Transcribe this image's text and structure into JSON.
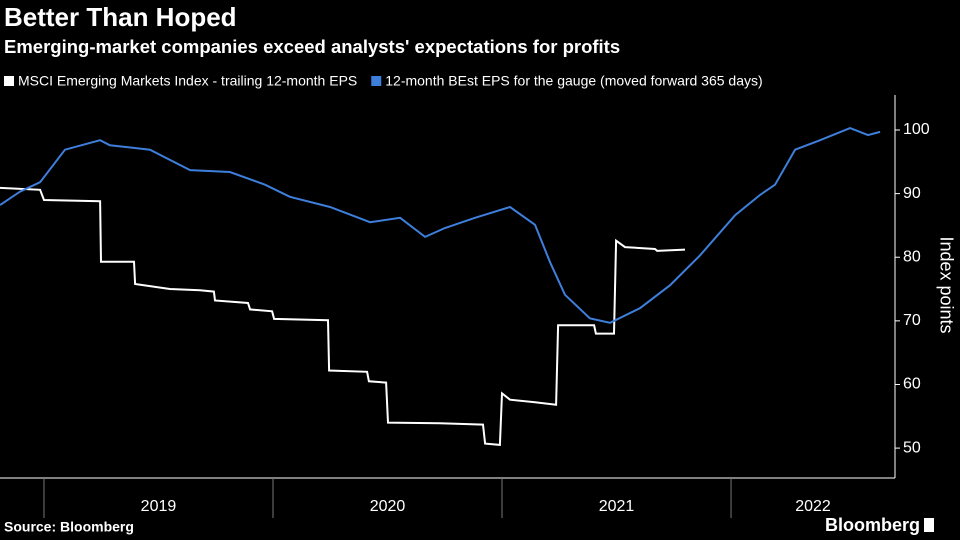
{
  "chart_data": {
    "type": "line",
    "title": "Better Than Hoped",
    "subtitle": "Emerging-market companies exceed analysts' expectations for profits",
    "y_axis_label": "Index points",
    "source": "Source: Bloomberg",
    "logo": "Bloomberg",
    "xlim": [
      2018.808,
      2022.716
    ],
    "xticks": [
      2019,
      2020,
      2021,
      2022
    ],
    "ylim": [
      45.3,
      105.5
    ],
    "yticks": [
      50,
      60,
      70,
      80,
      90,
      100
    ],
    "series": [
      {
        "name": "MSCI Emerging Markets Index - trailing 12-month EPS",
        "color": "#ffffff",
        "x": [
          2018.808,
          2018.983,
          2019.0,
          2019.245,
          2019.249,
          2019.393,
          2019.398,
          2019.55,
          2019.681,
          2019.742,
          2019.747,
          2019.891,
          2019.9,
          2019.996,
          2020.005,
          2020.24,
          2020.245,
          2020.411,
          2020.419,
          2020.494,
          2020.502,
          2020.729,
          2020.917,
          2020.926,
          2020.991,
          2021.0,
          2021.035,
          2021.144,
          2021.236,
          2021.245,
          2021.402,
          2021.41,
          2021.489,
          2021.498,
          2021.537,
          2021.668,
          2021.677,
          2021.799
        ],
        "values": [
          90.9,
          90.6,
          89.0,
          88.8,
          79.3,
          79.3,
          75.8,
          75.0,
          74.8,
          74.6,
          73.2,
          72.8,
          71.8,
          71.5,
          70.3,
          70.1,
          62.2,
          62.0,
          60.5,
          60.3,
          54.0,
          53.9,
          53.7,
          50.7,
          50.5,
          58.6,
          57.6,
          57.2,
          56.8,
          69.3,
          69.3,
          68.0,
          68.0,
          82.6,
          81.6,
          81.3,
          81.0,
          81.2
        ]
      },
      {
        "name": "12-month BEst EPS for the gauge (moved forward 365 days)",
        "color": "#3f7fdc",
        "x": [
          2018.808,
          2018.895,
          2018.983,
          2019.092,
          2019.245,
          2019.288,
          2019.463,
          2019.638,
          2019.812,
          2019.965,
          2020.074,
          2020.249,
          2020.424,
          2020.555,
          2020.664,
          2020.751,
          2020.882,
          2021.035,
          2021.144,
          2021.21,
          2021.275,
          2021.384,
          2021.472,
          2021.603,
          2021.734,
          2021.865,
          2022.018,
          2022.127,
          2022.192,
          2022.28,
          2022.389,
          2022.52,
          2022.598,
          2022.651
        ],
        "values": [
          88.2,
          90.3,
          91.8,
          96.9,
          98.4,
          97.6,
          96.9,
          93.7,
          93.4,
          91.4,
          89.5,
          87.9,
          85.5,
          86.2,
          83.2,
          84.6,
          86.2,
          87.9,
          85.1,
          79.2,
          74.1,
          70.4,
          69.7,
          72.0,
          75.6,
          80.3,
          86.6,
          89.8,
          91.4,
          96.9,
          98.4,
          100.3,
          99.2,
          99.7
        ]
      }
    ]
  }
}
